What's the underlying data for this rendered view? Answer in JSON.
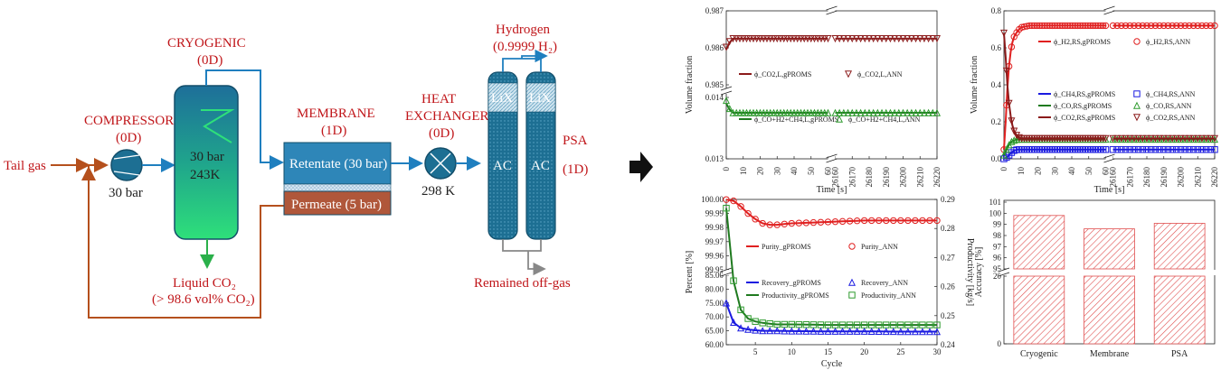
{
  "process": {
    "feed": "Tail gas",
    "compressor": {
      "title": "COMPRESSOR",
      "model": "(0D)",
      "pressure": "30 bar"
    },
    "cryogenic": {
      "title": "CRYOGENIC",
      "model": "(0D)",
      "line1": "30 bar",
      "line2": "243K"
    },
    "liquid_co2": {
      "label": "Liquid CO₂",
      "spec": "(> 98.6 vol% CO₂)"
    },
    "membrane": {
      "title": "MEMBRANE",
      "model": "(1D)",
      "retentate": "Retentate (30 bar)",
      "permeate": "Permeate (5 bar)"
    },
    "heat_exchanger": {
      "title1": "HEAT",
      "title2": "EXCHANGER",
      "model": "(0D)",
      "temperature": "298 K"
    },
    "psa": {
      "title": "PSA",
      "model": "(1D)",
      "layer_top": "LiX",
      "layer_bottom": "AC"
    },
    "hydrogen": {
      "label": "Hydrogen",
      "spec": "(0.9999 H₂)"
    },
    "offgas": "Remained off-gas",
    "colors": {
      "red_text": "#c0161a",
      "stream_blue": "#1f7fbf",
      "recycle_brown": "#b5501d",
      "column_teal": "#1d6f93",
      "membrane_blue": "#2e86b8",
      "permeate_brown": "#b0573a"
    }
  },
  "arrow_icon": "right-arrow-icon",
  "chart_data": [
    {
      "type": "line",
      "id": "tl",
      "xlabel": "Time [s]",
      "ylabel": "Volume fraction",
      "x_ticks_left": [
        "0",
        "10",
        "20",
        "30",
        "40",
        "50",
        "60"
      ],
      "x_ticks_right": [
        "26160",
        "26170",
        "26180",
        "26190",
        "26200",
        "26210",
        "26220"
      ],
      "y_ticks_upper": [
        "0.987",
        "0.986",
        "0.985"
      ],
      "y_ticks_lower": [
        "0.014",
        "0.013"
      ],
      "series": [
        {
          "name": "ϕ_CO2,L,gPROMS",
          "label": "ϕ_CO2,L,gPROMS",
          "color": "#8b1a1a",
          "style": "line",
          "x": [
            0,
            3,
            10,
            60,
            26160,
            26220
          ],
          "y": [
            0.98595,
            0.98625,
            0.98625,
            0.98625,
            0.98625,
            0.98625
          ]
        },
        {
          "name": "ϕ_CO2,L,ANN",
          "label": "ϕ_CO2,L,ANN",
          "color": "#8b1a1a",
          "style": "tri-down",
          "x": [
            0,
            3,
            10,
            60,
            26160,
            26220
          ],
          "y": [
            0.98602,
            0.98625,
            0.98625,
            0.98625,
            0.98625,
            0.98625
          ]
        },
        {
          "name": "ϕ_CO+H2+CH4,L,gPROMS",
          "label": "ϕ_CO+H2+CH4,L,gPROMS",
          "color": "#1f7a1f",
          "style": "line",
          "x": [
            0,
            3,
            10,
            60,
            26160,
            26220
          ],
          "y": [
            0.0139,
            0.01375,
            0.01375,
            0.01375,
            0.01375,
            0.01375
          ]
        },
        {
          "name": "ϕ_CO+H2+CH4,L,ANN",
          "label": "ϕ_CO+H2+CH4,L,ANN",
          "color": "#2e9b2e",
          "style": "tri-up",
          "x": [
            0,
            3,
            10,
            60,
            26160,
            26220
          ],
          "y": [
            0.01395,
            0.01375,
            0.01375,
            0.01375,
            0.01375,
            0.01375
          ]
        }
      ]
    },
    {
      "type": "line",
      "id": "tr",
      "xlabel": "Time [s]",
      "ylabel": "Volume fraction",
      "ylim": [
        0,
        0.8
      ],
      "y_ticks": [
        "0.0",
        "0.2",
        "0.4",
        "0.6",
        "0.8"
      ],
      "x_ticks_left": [
        "0",
        "10",
        "20",
        "30",
        "40",
        "50",
        "60"
      ],
      "x_ticks_right": [
        "26160",
        "26170",
        "26180",
        "26190",
        "26200",
        "26210",
        "26220"
      ],
      "series": [
        {
          "name": "ϕ_H2,RS,gPROMS",
          "label": "ϕ_H2,RS,gPROMS",
          "color": "#e02020",
          "style": "line"
        },
        {
          "name": "ϕ_H2,RS,ANN",
          "label": "ϕ_H2,RS,ANN",
          "color": "#e02020",
          "style": "circle"
        },
        {
          "name": "ϕ_CH4,RS,gPROMS",
          "label": "ϕ_CH4,RS,gPROMS",
          "color": "#1a1ae0",
          "style": "line"
        },
        {
          "name": "ϕ_CH4,RS,ANN",
          "label": "ϕ_CH4,RS,ANN",
          "color": "#1a1ae0",
          "style": "square"
        },
        {
          "name": "ϕ_CO,RS,gPROMS",
          "label": "ϕ_CO,RS,gPROMS",
          "color": "#1f7a1f",
          "style": "line"
        },
        {
          "name": "ϕ_CO,RS,ANN",
          "label": "ϕ_CO,RS,ANN",
          "color": "#2e9b2e",
          "style": "tri-up"
        },
        {
          "name": "ϕ_CO2,RS,gPROMS",
          "label": "ϕ_CO2,RS,gPROMS",
          "color": "#8b1a1a",
          "style": "line"
        },
        {
          "name": "ϕ_CO2,RS,ANN",
          "label": "ϕ_CO2,RS,ANN",
          "color": "#8b1a1a",
          "style": "tri-down"
        }
      ],
      "values": {
        "H2": {
          "x": [
            0,
            1,
            2,
            3,
            4,
            5,
            6,
            8,
            10,
            15,
            20,
            30,
            60
          ],
          "y": [
            0.05,
            0.2,
            0.38,
            0.5,
            0.58,
            0.63,
            0.66,
            0.69,
            0.71,
            0.72,
            0.72,
            0.72,
            0.72
          ]
        },
        "CH4": {
          "x": [
            0,
            2,
            4,
            6,
            8,
            10,
            20,
            60
          ],
          "y": [
            0.0,
            0.01,
            0.03,
            0.045,
            0.05,
            0.05,
            0.05,
            0.05
          ]
        },
        "CO": {
          "x": [
            0,
            2,
            4,
            6,
            8,
            10,
            20,
            60
          ],
          "y": [
            0.02,
            0.06,
            0.09,
            0.1,
            0.105,
            0.105,
            0.105,
            0.105
          ]
        },
        "CO2": {
          "x": [
            0,
            1,
            2,
            3,
            4,
            5,
            6,
            8,
            10,
            15,
            20,
            60
          ],
          "y": [
            0.68,
            0.55,
            0.4,
            0.3,
            0.23,
            0.18,
            0.15,
            0.12,
            0.11,
            0.11,
            0.11,
            0.11
          ]
        }
      }
    },
    {
      "type": "line",
      "id": "bl",
      "xlabel": "Cycle",
      "ylabel": "Percent [%]",
      "y2label": "Productivity [kg/s]",
      "x_ticks": [
        "5",
        "10",
        "15",
        "20",
        "25",
        "30"
      ],
      "y_ticks_upper": [
        "100.00",
        "99.99",
        "99.98",
        "99.97",
        "99.96",
        "99.95"
      ],
      "y_ticks_lower": [
        "85.00",
        "80.00",
        "75.00",
        "70.00",
        "65.00",
        "60.00"
      ],
      "y2_ticks": [
        "0.29",
        "0.28",
        "0.27",
        "0.26",
        "0.25",
        "0.24"
      ],
      "series": [
        {
          "name": "Purity_gPROMS",
          "label": "Purity_gPROMS",
          "color": "#e02020",
          "style": "line"
        },
        {
          "name": "Purity_ANN",
          "label": "Purity_ANN",
          "color": "#e02020",
          "style": "circle"
        },
        {
          "name": "Recovery_gPROMS",
          "label": "Recovery_gPROMS",
          "color": "#1a1ae0",
          "style": "line"
        },
        {
          "name": "Recovery_ANN",
          "label": "Recovery_ANN",
          "color": "#1a1ae0",
          "style": "tri-up"
        },
        {
          "name": "Productivity_gPROMS",
          "label": "Productivity_gPROMS",
          "color": "#1f7a1f",
          "style": "line"
        },
        {
          "name": "Productivity_ANN",
          "label": "Productivity_ANN",
          "color": "#2e9b2e",
          "style": "square"
        }
      ],
      "values": {
        "purity": {
          "x": [
            1,
            2,
            3,
            4,
            5,
            6,
            7,
            8,
            10,
            15,
            20,
            25,
            30
          ],
          "y": [
            99.9999,
            99.999,
            99.995,
            99.99,
            99.986,
            99.983,
            99.982,
            99.982,
            99.983,
            99.984,
            99.985,
            99.985,
            99.985
          ]
        },
        "recovery": {
          "x": [
            1,
            2,
            3,
            4,
            5,
            6,
            8,
            10,
            15,
            20,
            25,
            30
          ],
          "y": [
            75,
            68,
            66,
            65.5,
            65.2,
            65,
            65,
            64.9,
            64.8,
            64.8,
            64.7,
            64.7
          ]
        },
        "productivity": {
          "x": [
            1,
            2,
            3,
            4,
            5,
            6,
            8,
            10,
            15,
            20,
            25,
            30
          ],
          "y": [
            0.287,
            0.262,
            0.252,
            0.249,
            0.248,
            0.2475,
            0.247,
            0.247,
            0.2468,
            0.2468,
            0.2468,
            0.2468
          ]
        }
      }
    },
    {
      "type": "bar",
      "id": "br",
      "ylabel": "Accuracy [%]",
      "categories": [
        "Cryogenic",
        "Membrane",
        "PSA"
      ],
      "values": [
        99.8,
        98.6,
        99.1
      ],
      "y_ticks_upper": [
        "101",
        "100",
        "99",
        "98",
        "97",
        "96",
        "95"
      ],
      "y_ticks_lower": [
        "20",
        "0"
      ],
      "color": "#e05050"
    }
  ]
}
